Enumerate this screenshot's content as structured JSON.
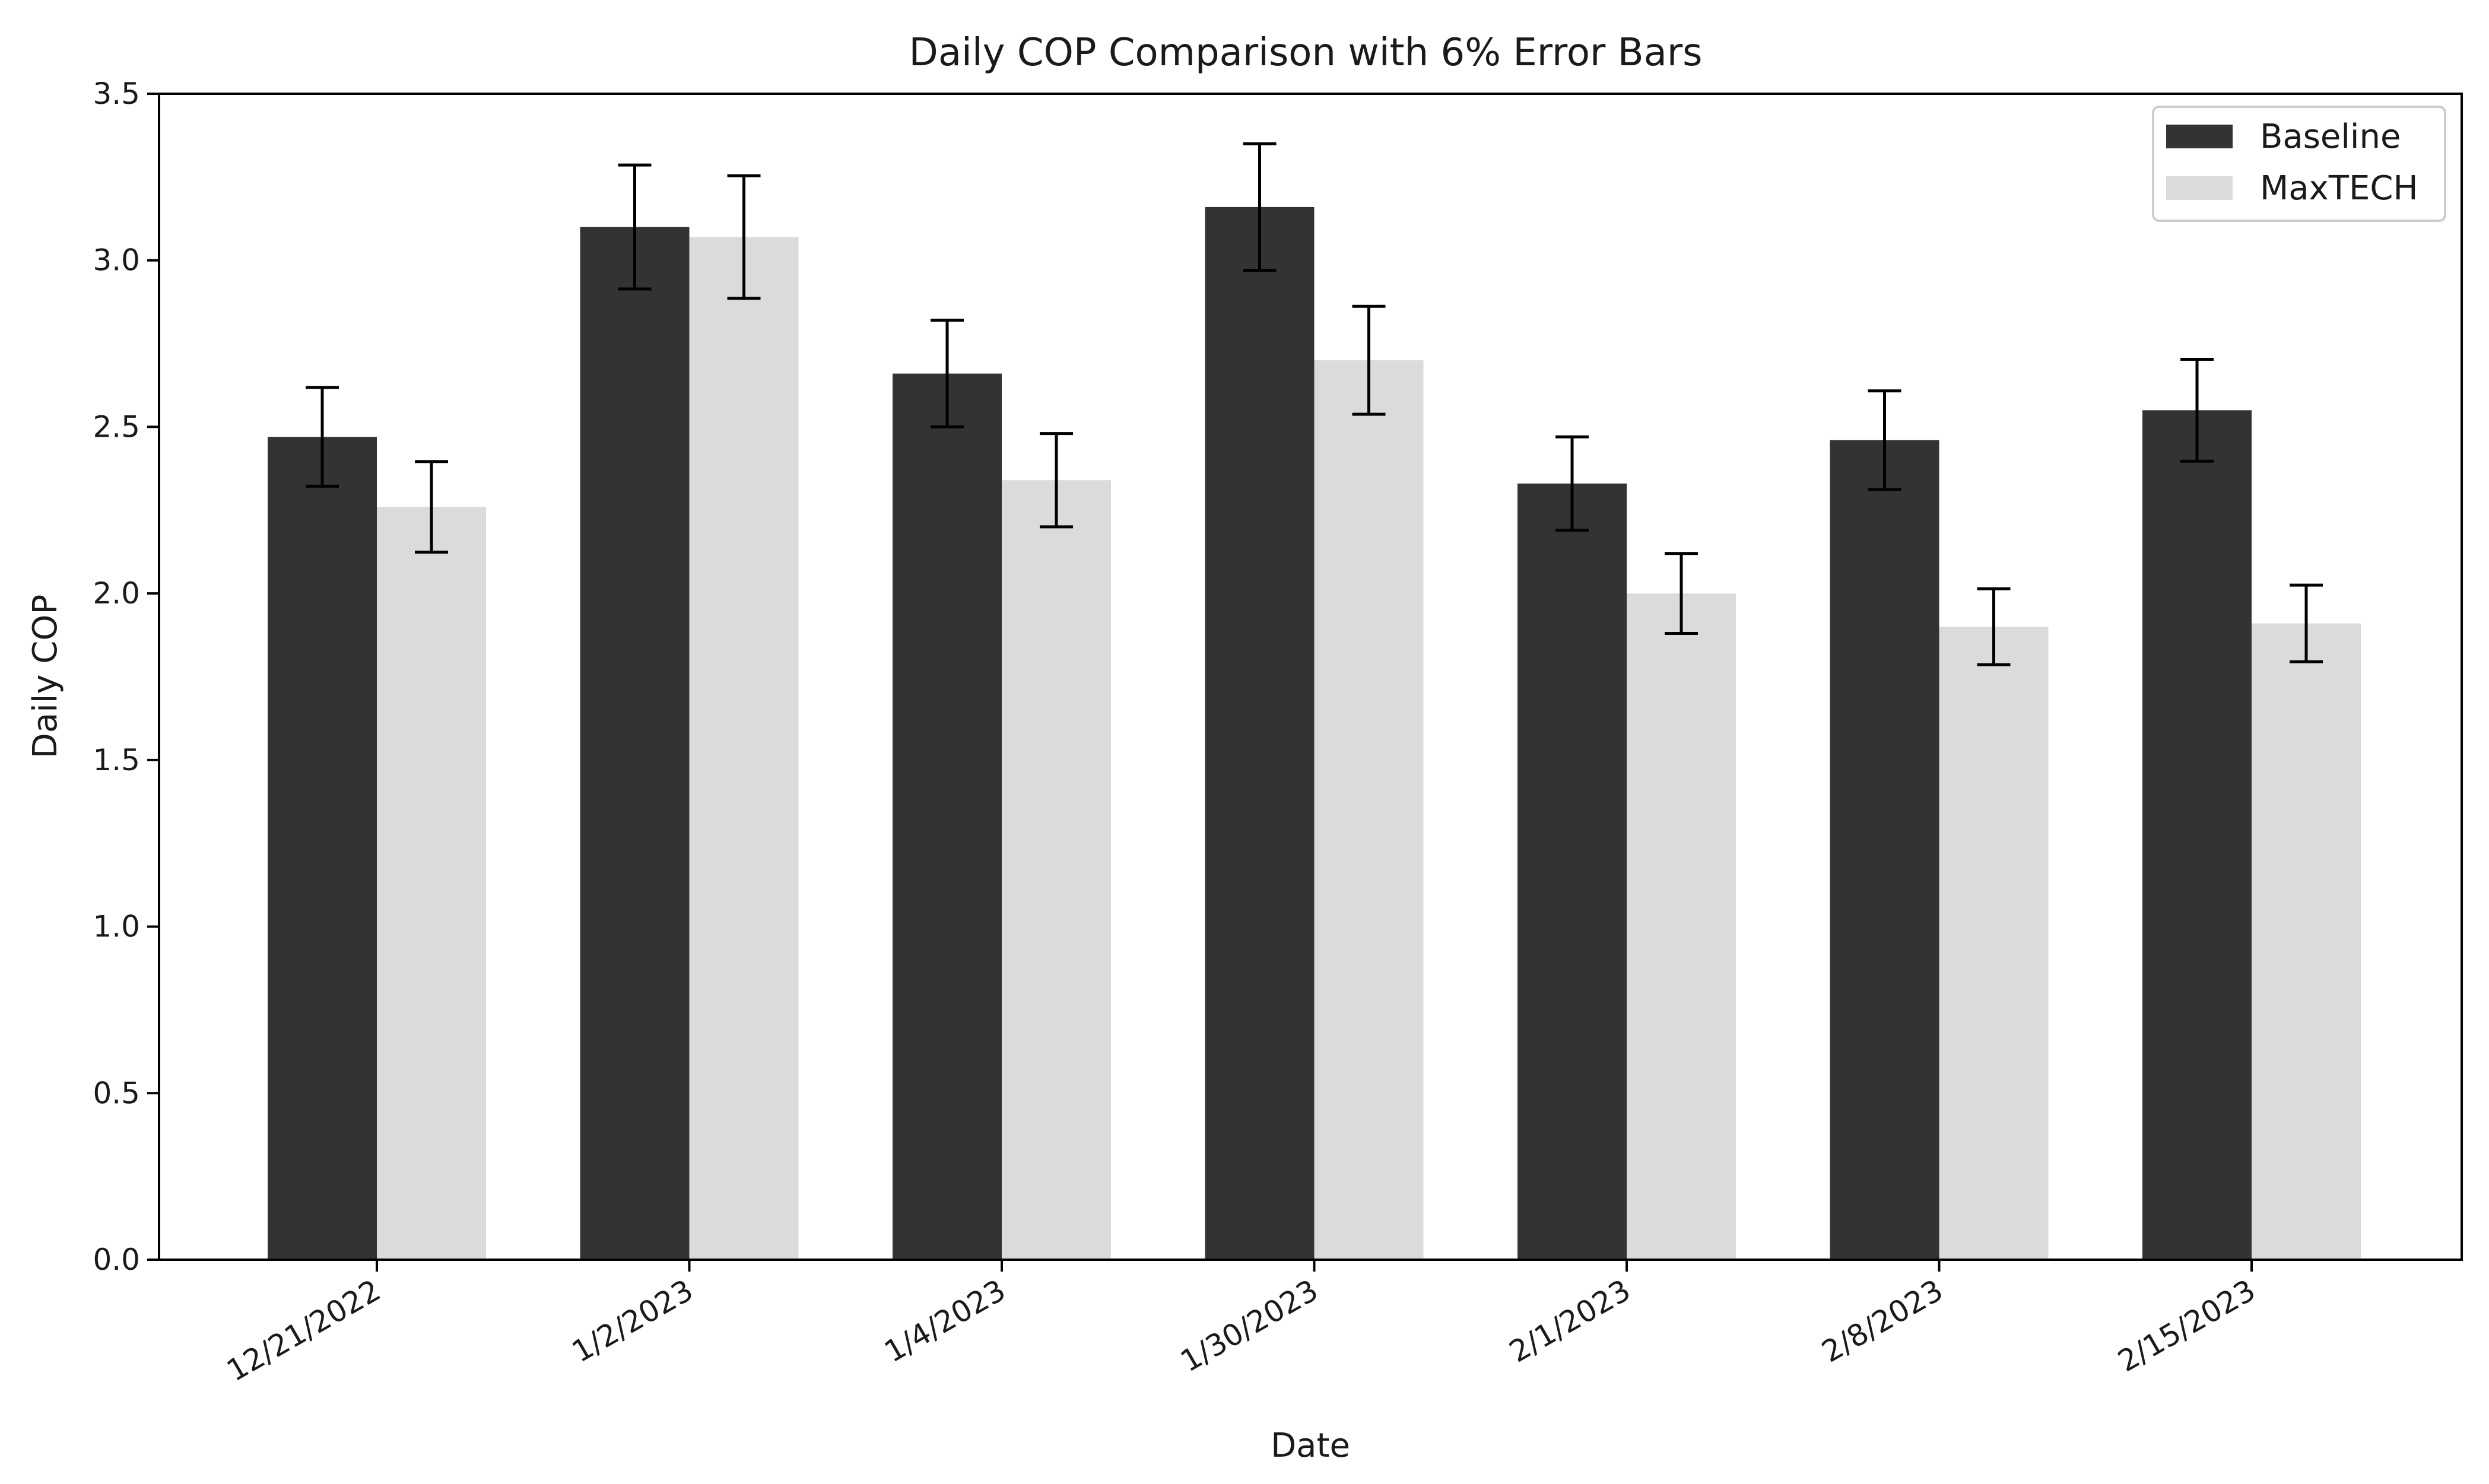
{
  "chart_data": {
    "type": "bar",
    "title": "Daily COP Comparison with 6% Error Bars",
    "xlabel": "Date",
    "ylabel": "Daily COP",
    "ylim": [
      0,
      3.5
    ],
    "yticks": [
      "0.0",
      "0.5",
      "1.0",
      "1.5",
      "2.0",
      "2.5",
      "3.0",
      "3.5"
    ],
    "grid": false,
    "legend_position": "top-right",
    "error_bars": "6%",
    "categories": [
      "12/21/2022",
      "1/2/2023",
      "1/4/2023",
      "1/30/2023",
      "2/1/2023",
      "2/8/2023",
      "2/15/2023"
    ],
    "series": [
      {
        "name": "Baseline",
        "color": "#333333",
        "values": [
          2.47,
          3.1,
          2.66,
          3.16,
          2.33,
          2.46,
          2.55
        ],
        "errors": [
          0.148,
          0.186,
          0.16,
          0.19,
          0.14,
          0.148,
          0.153
        ]
      },
      {
        "name": "MaxTECH",
        "color": "#dbdbdb",
        "values": [
          2.26,
          3.07,
          2.34,
          2.7,
          2.0,
          1.9,
          1.91
        ],
        "errors": [
          0.136,
          0.184,
          0.14,
          0.162,
          0.12,
          0.114,
          0.115
        ]
      }
    ]
  }
}
